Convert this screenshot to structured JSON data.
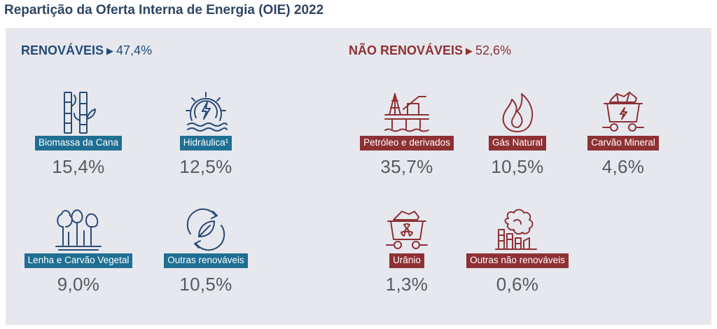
{
  "title": "Repartição da Oferta Interna de Energia (OIE) 2022",
  "renewables": {
    "name": "RENOVÁVEIS",
    "arrow": "▶",
    "total": "47,4%",
    "items": [
      {
        "label": "Biomassa da Cana",
        "value": "15,4%",
        "icon": "sugarcane-icon"
      },
      {
        "label": "Hidráulica¹",
        "value": "12,5%",
        "icon": "hydro-icon"
      },
      {
        "label": "Lenha e Carvão Vegetal",
        "value": "9,0%",
        "icon": "forest-icon"
      },
      {
        "label": "Outras renováveis",
        "value": "10,5%",
        "icon": "recycle-leaf-icon"
      }
    ]
  },
  "non_renewables": {
    "name": "NÃO RENOVÁVEIS",
    "arrow": "▶",
    "total": "52,6%",
    "items": [
      {
        "label": "Petróleo e derivados",
        "value": "35,7%",
        "icon": "oil-platform-icon"
      },
      {
        "label": "Gás Natural",
        "value": "10,5%",
        "icon": "flame-icon"
      },
      {
        "label": "Carvão Mineral",
        "value": "4,6%",
        "icon": "coal-cart-icon"
      },
      {
        "label": "Urânio",
        "value": "1,3%",
        "icon": "uranium-cart-icon"
      },
      {
        "label": "Outras não renováveis",
        "value": "0,6%",
        "icon": "industry-smoke-icon"
      }
    ]
  },
  "colors": {
    "renewable_label_bg": "#1f6f93",
    "renewable_text": "#254a78",
    "nonrenewable": "#8e3135",
    "panel_bg": "#e6e8ee"
  }
}
